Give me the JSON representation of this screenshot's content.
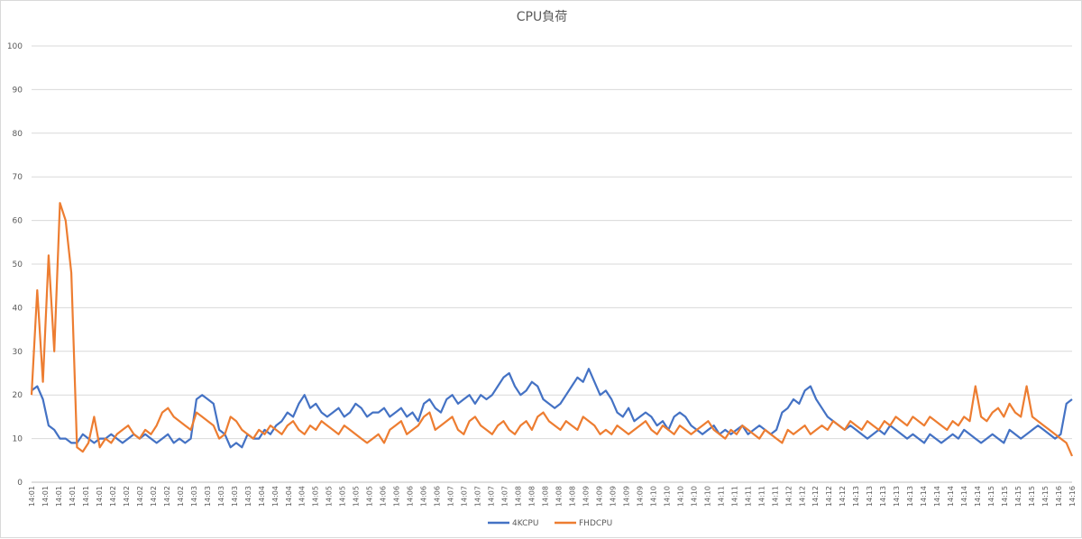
{
  "chart_data": {
    "type": "line",
    "title": "CPU負荷",
    "xlabel": "",
    "ylabel": "",
    "ylim": [
      0,
      100
    ],
    "yticks": [
      0,
      10,
      20,
      30,
      40,
      50,
      60,
      70,
      80,
      90,
      100
    ],
    "x_tick_labels": [
      "14:01",
      "14:01",
      "14:01",
      "14:01",
      "14:01",
      "14:01",
      "14:02",
      "14:02",
      "14:02",
      "14:02",
      "14:02",
      "14:02",
      "14:03",
      "14:03",
      "14:03",
      "14:03",
      "14:03",
      "14:04",
      "14:04",
      "14:04",
      "14:04",
      "14:05",
      "14:05",
      "14:05",
      "14:05",
      "14:05",
      "14:06",
      "14:06",
      "14:06",
      "14:06",
      "14:06",
      "14:07",
      "14:07",
      "14:07",
      "14:07",
      "14:07",
      "14:08",
      "14:08",
      "14:08",
      "14:08",
      "14:08",
      "14:09",
      "14:09",
      "14:09",
      "14:09",
      "14:09",
      "14:10",
      "14:10",
      "14:10",
      "14:10",
      "14:10",
      "14:11",
      "14:11",
      "14:11",
      "14:11",
      "14:11",
      "14:12",
      "14:12",
      "14:12",
      "14:12",
      "14:12",
      "14:13",
      "14:13",
      "14:13",
      "14:13",
      "14:13",
      "14:14",
      "14:14",
      "14:14",
      "14:14",
      "14:14",
      "14:15",
      "14:15",
      "14:15",
      "14:15",
      "14:15",
      "14:16",
      "14:16"
    ],
    "grid": true,
    "legend_position": "bottom",
    "series": [
      {
        "name": "4KCPU",
        "color": "#4472c4",
        "values": [
          21,
          22,
          19,
          13,
          12,
          10,
          10,
          9,
          9,
          11,
          10,
          9,
          10,
          10,
          11,
          10,
          9,
          10,
          11,
          10,
          11,
          10,
          9,
          10,
          11,
          9,
          10,
          9,
          10,
          19,
          20,
          19,
          18,
          12,
          11,
          8,
          9,
          8,
          11,
          10,
          10,
          12,
          11,
          13,
          14,
          16,
          15,
          18,
          20,
          17,
          18,
          16,
          15,
          16,
          17,
          15,
          16,
          18,
          17,
          15,
          16,
          16,
          17,
          15,
          16,
          17,
          15,
          16,
          14,
          18,
          19,
          17,
          16,
          19,
          20,
          18,
          19,
          20,
          18,
          20,
          19,
          20,
          22,
          24,
          25,
          22,
          20,
          21,
          23,
          22,
          19,
          18,
          17,
          18,
          20,
          22,
          24,
          23,
          26,
          23,
          20,
          21,
          19,
          16,
          15,
          17,
          14,
          15,
          16,
          15,
          13,
          14,
          12,
          15,
          16,
          15,
          13,
          12,
          11,
          12,
          13,
          11,
          12,
          11,
          12,
          13,
          11,
          12,
          13,
          12,
          11,
          12,
          16,
          17,
          19,
          18,
          21,
          22,
          19,
          17,
          15,
          14,
          13,
          12,
          13,
          12,
          11,
          10,
          11,
          12,
          11,
          13,
          12,
          11,
          10,
          11,
          10,
          9,
          11,
          10,
          9,
          10,
          11,
          10,
          12,
          11,
          10,
          9,
          10,
          11,
          10,
          9,
          12,
          11,
          10,
          11,
          12,
          13,
          12,
          11,
          10,
          11,
          18,
          19
        ]
      },
      {
        "name": "FHDCPU",
        "color": "#ed7d31",
        "values": [
          20,
          44,
          23,
          52,
          30,
          64,
          60,
          48,
          8,
          7,
          9,
          15,
          8,
          10,
          9,
          11,
          12,
          13,
          11,
          10,
          12,
          11,
          13,
          16,
          17,
          15,
          14,
          13,
          12,
          16,
          15,
          14,
          13,
          10,
          11,
          15,
          14,
          12,
          11,
          10,
          12,
          11,
          13,
          12,
          11,
          13,
          14,
          12,
          11,
          13,
          12,
          14,
          13,
          12,
          11,
          13,
          12,
          11,
          10,
          9,
          10,
          11,
          9,
          12,
          13,
          14,
          11,
          12,
          13,
          15,
          16,
          12,
          13,
          14,
          15,
          12,
          11,
          14,
          15,
          13,
          12,
          11,
          13,
          14,
          12,
          11,
          13,
          14,
          12,
          15,
          16,
          14,
          13,
          12,
          14,
          13,
          12,
          15,
          14,
          13,
          11,
          12,
          11,
          13,
          12,
          11,
          12,
          13,
          14,
          12,
          11,
          13,
          12,
          11,
          13,
          12,
          11,
          12,
          13,
          14,
          12,
          11,
          10,
          12,
          11,
          13,
          12,
          11,
          10,
          12,
          11,
          10,
          9,
          12,
          11,
          12,
          13,
          11,
          12,
          13,
          12,
          14,
          13,
          12,
          14,
          13,
          12,
          14,
          13,
          12,
          14,
          13,
          15,
          14,
          13,
          15,
          14,
          13,
          15,
          14,
          13,
          12,
          14,
          13,
          15,
          14,
          22,
          15,
          14,
          16,
          17,
          15,
          18,
          16,
          15,
          22,
          15,
          14,
          13,
          12,
          11,
          10,
          9,
          6
        ]
      }
    ]
  }
}
